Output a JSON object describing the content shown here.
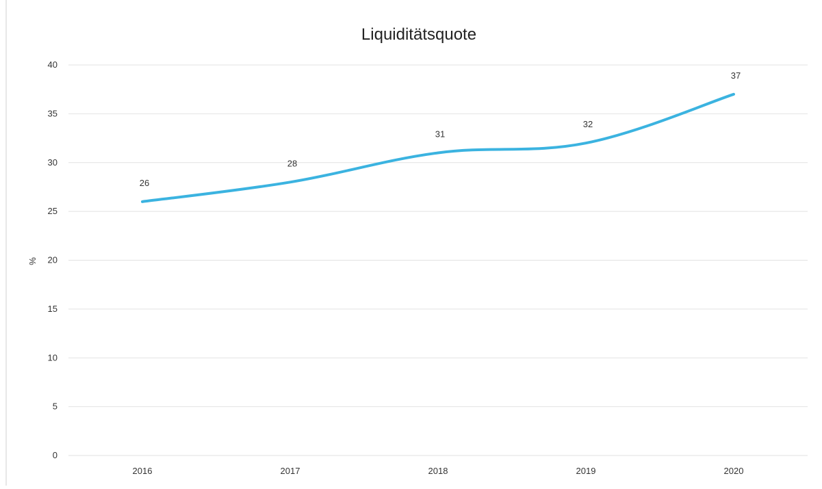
{
  "chart_data": {
    "type": "line",
    "title": "Liquiditätsquote",
    "xlabel": "",
    "ylabel": "%",
    "categories": [
      "2016",
      "2017",
      "2018",
      "2019",
      "2020"
    ],
    "series": [
      {
        "values": [
          26,
          28,
          31,
          32,
          37
        ],
        "labels": [
          "26",
          "28",
          "31",
          "32",
          "37"
        ],
        "color": "#3bb3e0"
      }
    ],
    "ylim": [
      0,
      40
    ],
    "yticks": [
      0,
      5,
      10,
      15,
      20,
      25,
      30,
      35,
      40
    ],
    "grid": true,
    "legend": "none"
  }
}
